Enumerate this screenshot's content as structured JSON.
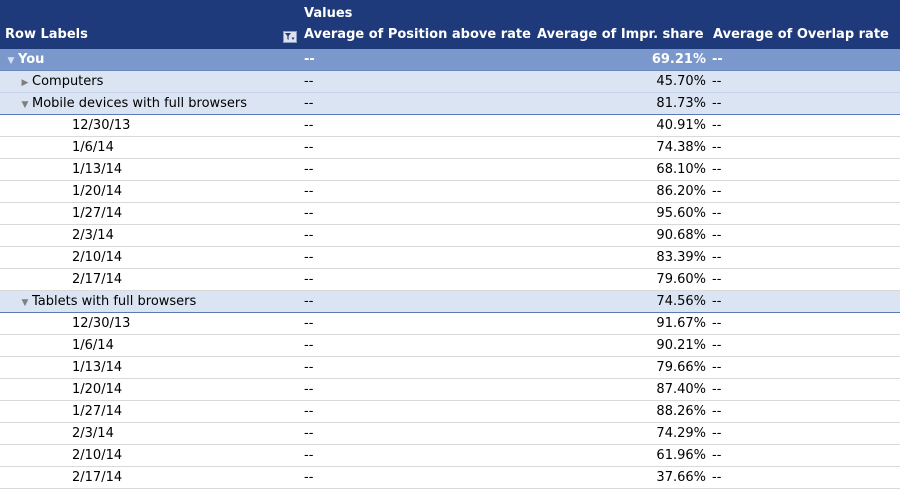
{
  "header": {
    "values_label": "Values",
    "row_labels": "Row Labels",
    "col_position": "Average of Position above rate",
    "col_impr": "Average of Impr. share",
    "col_overlap": "Average of Overlap rate"
  },
  "rows": [
    {
      "label": "You",
      "pos": "--",
      "impr": "69.21%",
      "ovl": "--"
    },
    {
      "label": "Computers",
      "pos": "--",
      "impr": "45.70%",
      "ovl": "--"
    },
    {
      "label": "Mobile devices with full browsers",
      "pos": "--",
      "impr": "81.73%",
      "ovl": "--"
    },
    {
      "label": "12/30/13",
      "pos": "--",
      "impr": "40.91%",
      "ovl": "--"
    },
    {
      "label": "1/6/14",
      "pos": "--",
      "impr": "74.38%",
      "ovl": "--"
    },
    {
      "label": "1/13/14",
      "pos": "--",
      "impr": "68.10%",
      "ovl": "--"
    },
    {
      "label": "1/20/14",
      "pos": "--",
      "impr": "86.20%",
      "ovl": "--"
    },
    {
      "label": "1/27/14",
      "pos": "--",
      "impr": "95.60%",
      "ovl": "--"
    },
    {
      "label": "2/3/14",
      "pos": "--",
      "impr": "90.68%",
      "ovl": "--"
    },
    {
      "label": "2/10/14",
      "pos": "--",
      "impr": "83.39%",
      "ovl": "--"
    },
    {
      "label": "2/17/14",
      "pos": "--",
      "impr": "79.60%",
      "ovl": "--"
    },
    {
      "label": "Tablets with full browsers",
      "pos": "--",
      "impr": "74.56%",
      "ovl": "--"
    },
    {
      "label": "12/30/13",
      "pos": "--",
      "impr": "91.67%",
      "ovl": "--"
    },
    {
      "label": "1/6/14",
      "pos": "--",
      "impr": "90.21%",
      "ovl": "--"
    },
    {
      "label": "1/13/14",
      "pos": "--",
      "impr": "79.66%",
      "ovl": "--"
    },
    {
      "label": "1/20/14",
      "pos": "--",
      "impr": "87.40%",
      "ovl": "--"
    },
    {
      "label": "1/27/14",
      "pos": "--",
      "impr": "88.26%",
      "ovl": "--"
    },
    {
      "label": "2/3/14",
      "pos": "--",
      "impr": "74.29%",
      "ovl": "--"
    },
    {
      "label": "2/10/14",
      "pos": "--",
      "impr": "61.96%",
      "ovl": "--"
    },
    {
      "label": "2/17/14",
      "pos": "--",
      "impr": "37.66%",
      "ovl": "--"
    }
  ],
  "icons": {
    "expanded": "triangle-down-icon",
    "collapsed": "triangle-right-icon",
    "filter": "filter-icon"
  },
  "colors": {
    "header_bg": "#1f3a7a",
    "level0_bg": "#7b98cc",
    "level1_bg": "#dbe4f3"
  }
}
